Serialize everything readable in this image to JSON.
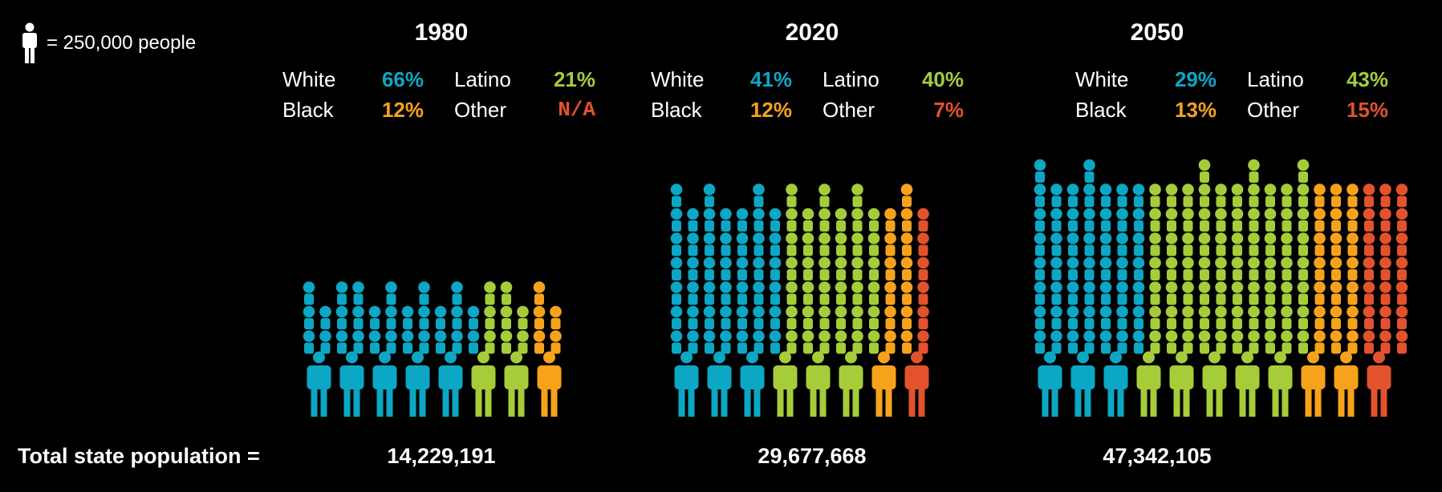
{
  "legend": {
    "icon": "person-icon",
    "text": "= 250,000 people"
  },
  "footer": {
    "label": "Total state population ="
  },
  "colors": {
    "White": "#0ba7c4",
    "Black": "#f7a21b",
    "Latino": "#a6cc39",
    "Other": "#e2522d"
  },
  "chart_data": {
    "type": "pictogram",
    "unit": 250000,
    "panels": [
      {
        "year": "1980",
        "total": "14,229,191",
        "population": 14229191,
        "stats": [
          {
            "label": "White",
            "value": "66%",
            "pct": 66
          },
          {
            "label": "Latino",
            "value": "21%",
            "pct": 21
          },
          {
            "label": "Black",
            "value": "12%",
            "pct": 12
          },
          {
            "label": "Other",
            "value": "N/A",
            "pct": 0
          }
        ]
      },
      {
        "year": "2020",
        "total": "29,677,668",
        "population": 29677668,
        "stats": [
          {
            "label": "White",
            "value": "41%",
            "pct": 41
          },
          {
            "label": "Latino",
            "value": "40%",
            "pct": 40
          },
          {
            "label": "Black",
            "value": "12%",
            "pct": 12
          },
          {
            "label": "Other",
            "value": "7%",
            "pct": 7
          }
        ]
      },
      {
        "year": "2050",
        "total": "47,342,105",
        "population": 47342105,
        "stats": [
          {
            "label": "White",
            "value": "29%",
            "pct": 29
          },
          {
            "label": "Latino",
            "value": "43%",
            "pct": 43
          },
          {
            "label": "Black",
            "value": "13%",
            "pct": 13
          },
          {
            "label": "Other",
            "value": "15%",
            "pct": 15
          }
        ]
      }
    ]
  }
}
